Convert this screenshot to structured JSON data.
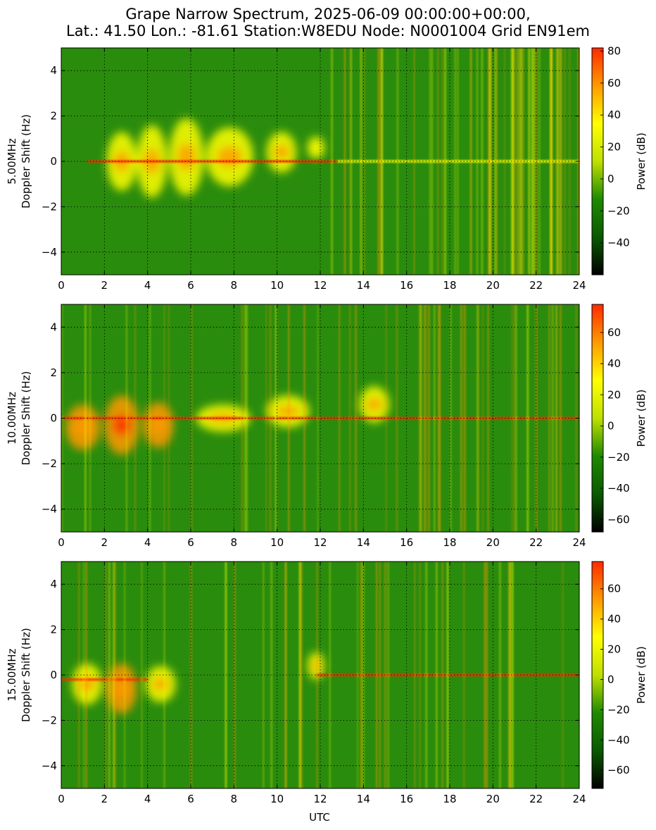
{
  "title_lines": [
    "Grape Narrow Spectrum, 2025-06-09 00:00:00+00:00,",
    "Lat.: 41.50 Lon.: -81.61 Station:W8EDU Node: N0001004 Grid EN91em"
  ],
  "colors": {
    "colormap": [
      "#000000",
      "#0a5a00",
      "#1f8a00",
      "#bfe000",
      "#ffff00",
      "#ff9a00",
      "#ff2a00"
    ],
    "background_field": "#2a8c0c",
    "grid": "#000000"
  },
  "chart_data": [
    {
      "type": "heatmap",
      "frequency_label": "5.00MHz",
      "ylabel": "5.00MHz\nDoppler Shift (Hz)",
      "xlabel": "",
      "xlim": [
        0,
        24
      ],
      "ylim": [
        -5,
        5
      ],
      "x_ticks": [
        0,
        2,
        4,
        6,
        8,
        10,
        12,
        14,
        16,
        18,
        20,
        22,
        24
      ],
      "y_ticks": [
        -4,
        -2,
        0,
        2,
        4
      ],
      "grid": true,
      "colorbar": {
        "label": "Power (dB)",
        "range": [
          -60,
          82
        ],
        "ticks": [
          -40,
          -20,
          0,
          20,
          40,
          60,
          80
        ]
      },
      "features": [
        {
          "kind": "blob",
          "x": 2.8,
          "y": 0,
          "w": 1.4,
          "h": 2.6,
          "power": 45
        },
        {
          "kind": "blob",
          "x": 4.2,
          "y": 0,
          "w": 1.4,
          "h": 3.2,
          "power": 45
        },
        {
          "kind": "blob",
          "x": 5.8,
          "y": 0.2,
          "w": 1.6,
          "h": 3.4,
          "power": 45
        },
        {
          "kind": "blob",
          "x": 7.8,
          "y": 0.2,
          "w": 2.2,
          "h": 2.6,
          "power": 48
        },
        {
          "kind": "blob",
          "x": 10.2,
          "y": 0.4,
          "w": 1.4,
          "h": 1.8,
          "power": 45
        },
        {
          "kind": "blob",
          "x": 11.8,
          "y": 0.6,
          "w": 0.8,
          "h": 1.0,
          "power": 30
        },
        {
          "kind": "line",
          "x0": 1.2,
          "x1": 12.8,
          "y": 0,
          "power": 70
        },
        {
          "kind": "line",
          "x0": 12.8,
          "x1": 24,
          "y": 0,
          "power": 25
        },
        {
          "kind": "streaks",
          "x0": 12.5,
          "x1": 24,
          "count": 60,
          "power": 30
        }
      ]
    },
    {
      "type": "heatmap",
      "frequency_label": "10.00MHz",
      "ylabel": "10.00MHz\nDoppler Shift (Hz)",
      "xlabel": "",
      "xlim": [
        0,
        24
      ],
      "ylim": [
        -5,
        5
      ],
      "x_ticks": [
        0,
        2,
        4,
        6,
        8,
        10,
        12,
        14,
        16,
        18,
        20,
        22,
        24
      ],
      "y_ticks": [
        -4,
        -2,
        0,
        2,
        4
      ],
      "grid": true,
      "colorbar": {
        "label": "Power (dB)",
        "range": [
          -68,
          78
        ],
        "ticks": [
          -60,
          -40,
          -20,
          0,
          20,
          40,
          60
        ]
      },
      "features": [
        {
          "kind": "blob",
          "x": 1.0,
          "y": -0.4,
          "w": 1.6,
          "h": 2.0,
          "power": 50
        },
        {
          "kind": "blob",
          "x": 2.8,
          "y": -0.3,
          "w": 1.6,
          "h": 2.6,
          "power": 55
        },
        {
          "kind": "blob",
          "x": 4.5,
          "y": -0.3,
          "w": 1.4,
          "h": 2.0,
          "power": 50
        },
        {
          "kind": "blob",
          "x": 7.5,
          "y": 0,
          "w": 2.5,
          "h": 1.2,
          "power": 35
        },
        {
          "kind": "blob",
          "x": 10.5,
          "y": 0.3,
          "w": 2.0,
          "h": 1.4,
          "power": 40
        },
        {
          "kind": "blob",
          "x": 14.5,
          "y": 0.6,
          "w": 1.4,
          "h": 1.6,
          "power": 30
        },
        {
          "kind": "line",
          "x0": 0,
          "x1": 24,
          "y": 0,
          "power": 65
        },
        {
          "kind": "streaks",
          "x0": 0,
          "x1": 24,
          "count": 50,
          "power": 25
        }
      ]
    },
    {
      "type": "heatmap",
      "frequency_label": "15.00MHz",
      "ylabel": "15.00MHz\nDoppler Shift (Hz)",
      "xlabel": "UTC",
      "xlim": [
        0,
        24
      ],
      "ylim": [
        -5,
        5
      ],
      "x_ticks": [
        0,
        2,
        4,
        6,
        8,
        10,
        12,
        14,
        16,
        18,
        20,
        22,
        24
      ],
      "y_ticks": [
        -4,
        -2,
        0,
        2,
        4
      ],
      "grid": true,
      "colorbar": {
        "label": "Power (dB)",
        "range": [
          -72,
          78
        ],
        "ticks": [
          -60,
          -40,
          -20,
          0,
          20,
          40,
          60
        ]
      },
      "features": [
        {
          "kind": "blob",
          "x": 1.2,
          "y": -0.4,
          "w": 1.4,
          "h": 1.8,
          "power": 40
        },
        {
          "kind": "blob",
          "x": 2.8,
          "y": -0.6,
          "w": 1.4,
          "h": 2.2,
          "power": 45
        },
        {
          "kind": "blob",
          "x": 4.6,
          "y": -0.4,
          "w": 1.4,
          "h": 1.6,
          "power": 35
        },
        {
          "kind": "blob",
          "x": 11.8,
          "y": 0.4,
          "w": 0.8,
          "h": 1.2,
          "power": 35
        },
        {
          "kind": "line",
          "x0": 0,
          "x1": 4,
          "y": -0.2,
          "power": 65
        },
        {
          "kind": "line",
          "x0": 11.8,
          "x1": 24,
          "y": 0,
          "power": 55
        },
        {
          "kind": "streaks",
          "x0": 0,
          "x1": 24,
          "count": 45,
          "power": 22
        }
      ]
    }
  ]
}
